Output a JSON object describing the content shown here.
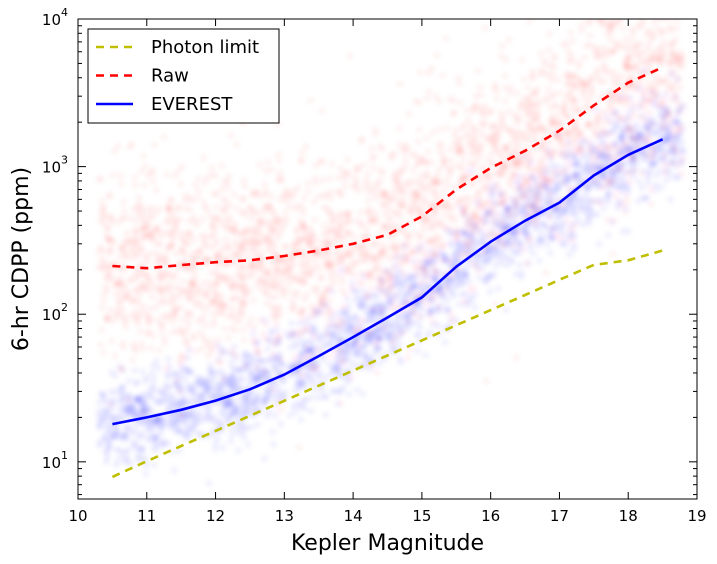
{
  "chart_data": {
    "type": "line",
    "xlabel": "Kepler Magnitude",
    "ylabel": "6-hr CDPP (ppm)",
    "xlim": [
      10,
      19
    ],
    "ylim": [
      5.6,
      10000
    ],
    "yscale": "log",
    "xticks": [
      10,
      11,
      12,
      13,
      14,
      15,
      16,
      17,
      18,
      19
    ],
    "yticks": [
      {
        "value": 10,
        "base": "10",
        "exp": "1"
      },
      {
        "value": 100,
        "base": "10",
        "exp": "2"
      },
      {
        "value": 1000,
        "base": "10",
        "exp": "3"
      },
      {
        "value": 10000,
        "base": "10",
        "exp": "4"
      }
    ],
    "grid": false,
    "legend_position": "top-left",
    "series": [
      {
        "name": "Photon limit",
        "style": "dashed",
        "color": "#bfbf00",
        "x": [
          10.5,
          11,
          11.5,
          12,
          12.5,
          13,
          13.5,
          14,
          14.5,
          15,
          15.5,
          16,
          16.5,
          17,
          17.5,
          18,
          18.5
        ],
        "y": [
          7.9,
          10.1,
          12.8,
          16.2,
          20.5,
          25.9,
          32.8,
          41.5,
          52.5,
          66.5,
          84.2,
          106.6,
          135,
          171,
          216,
          232,
          270
        ]
      },
      {
        "name": "Raw",
        "style": "dashed",
        "color": "#ff0000",
        "x": [
          10.5,
          11,
          11.5,
          12,
          12.5,
          13,
          13.5,
          14,
          14.5,
          15,
          15.5,
          16,
          16.5,
          17,
          17.5,
          18,
          18.5
        ],
        "y": [
          212,
          205,
          215,
          225,
          232,
          248,
          270,
          300,
          345,
          460,
          700,
          980,
          1280,
          1750,
          2600,
          3700,
          4700
        ]
      },
      {
        "name": "EVEREST",
        "style": "solid",
        "color": "#0000ff",
        "x": [
          10.5,
          11,
          11.5,
          12,
          12.5,
          13,
          13.5,
          14,
          14.5,
          15,
          15.5,
          16,
          16.5,
          17,
          17.5,
          18,
          18.5
        ],
        "y": [
          18,
          20,
          22.5,
          26,
          31,
          39,
          52,
          70,
          95,
          130,
          210,
          310,
          430,
          570,
          870,
          1200,
          1530
        ]
      }
    ],
    "scatter_clouds": [
      {
        "color": "#ff0000",
        "represents": "Raw"
      },
      {
        "color": "#0000ff",
        "represents": "EVEREST"
      }
    ]
  }
}
